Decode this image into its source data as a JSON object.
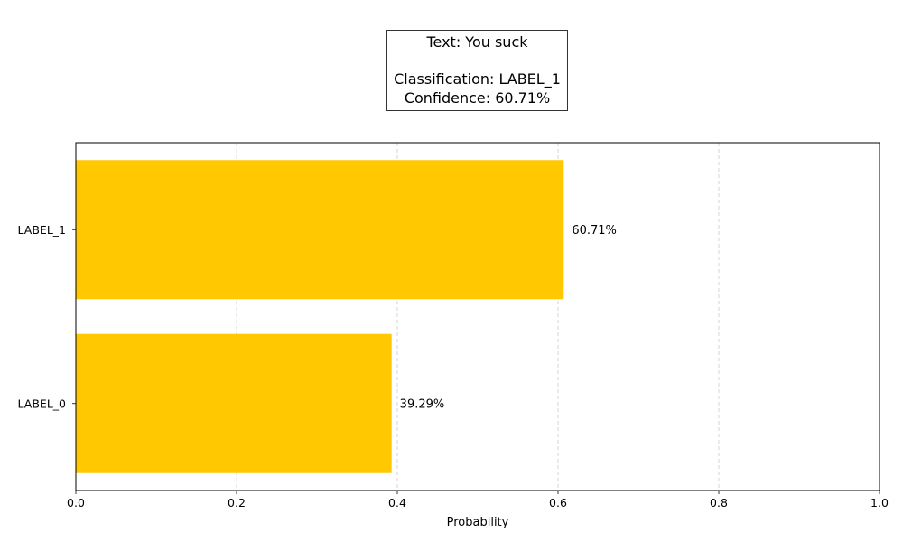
{
  "title_lines": {
    "text": "Text: You suck",
    "classification": "Classification: LABEL_1",
    "confidence": "Confidence: 60.71%"
  },
  "chart_data": {
    "type": "bar",
    "orientation": "horizontal",
    "categories": [
      "LABEL_0",
      "LABEL_1"
    ],
    "values": [
      0.3929,
      0.6071
    ],
    "data_labels": [
      "39.29%",
      "60.71%"
    ],
    "xlabel": "Probability",
    "ylabel": "",
    "xlim": [
      0,
      1.0
    ],
    "x_ticks": [
      "0.0",
      "0.2",
      "0.4",
      "0.6",
      "0.8",
      "1.0"
    ],
    "grid": "x-axis dashed",
    "bar_color": "#ffc800"
  }
}
